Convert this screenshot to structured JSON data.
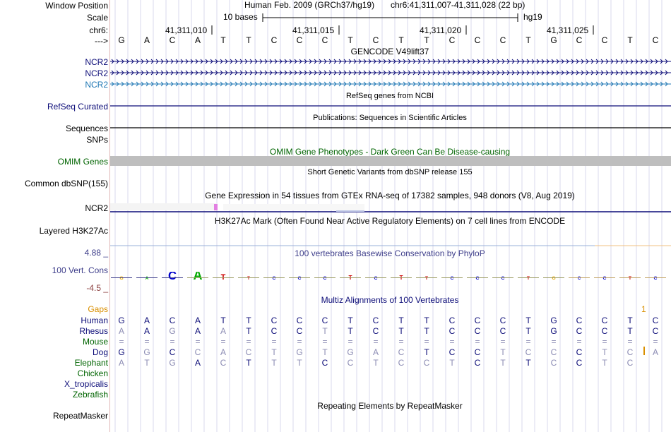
{
  "header": {
    "window_position_label": "Window Position",
    "scale_label": "Scale",
    "chrom_label": "chr6:",
    "arrow_label": "--->",
    "assembly": "Human Feb. 2009 (GRCh37/hg19)",
    "position": "chr6:41,311,007-41,311,028 (22 bp)",
    "scale_text": "10 bases",
    "scale_db": "hg19",
    "ticks": [
      "41,311,010",
      "41,311,015",
      "41,311,020",
      "41,311,025"
    ]
  },
  "sequence": [
    "G",
    "A",
    "C",
    "A",
    "T",
    "T",
    "C",
    "C",
    "C",
    "T",
    "C",
    "T",
    "T",
    "C",
    "C",
    "C",
    "T",
    "G",
    "C",
    "C",
    "T",
    "C"
  ],
  "tracks": {
    "gencode": {
      "title": "GENCODE V49lift37",
      "items": [
        "NCR2",
        "NCR2",
        "NCR2"
      ]
    },
    "refseq": {
      "title": "RefSeq genes from NCBI",
      "label": "RefSeq Curated"
    },
    "publications": {
      "title": "Publications: Sequences in Scientific Articles",
      "label1": "Sequences",
      "label2": "SNPs"
    },
    "omim": {
      "title": "OMIM Gene Phenotypes - Dark Green Can Be Disease-causing",
      "label": "OMIM Genes"
    },
    "dbsnp": {
      "title": "Short Genetic Variants from dbSNP release 155",
      "label": "Common dbSNP(155)"
    },
    "gtex": {
      "title": "Gene Expression in 54 tissues from GTEx RNA-seq of 17382 samples, 948 donors (V8, Aug 2019)",
      "label": "NCR2"
    },
    "h3k27ac": {
      "title": "H3K27Ac Mark (Often Found Near Active Regulatory Elements) on 7 cell lines from ENCODE",
      "label": "Layered H3K27Ac"
    },
    "phylop": {
      "title": "100 vertebrates Basewise Conservation by PhyloP",
      "label": "100 Vert. Cons",
      "max": "4.88 _",
      "min": "-4.5 _"
    },
    "multiz": {
      "title": "Multiz Alignments of 100 Vertebrates",
      "gaps_label": "Gaps",
      "gap_mark": "1",
      "species": [
        {
          "name": "Human",
          "bases": [
            "G",
            "A",
            "C",
            "A",
            "T",
            "T",
            "C",
            "C",
            "C",
            "T",
            "C",
            "T",
            "T",
            "C",
            "C",
            "C",
            "T",
            "G",
            "C",
            "C",
            "T",
            "C"
          ]
        },
        {
          "name": "Rhesus",
          "bases": [
            "A",
            "A",
            "G",
            "A",
            "A",
            "T",
            "C",
            "C",
            "T",
            "T",
            "C",
            "T",
            "T",
            "C",
            "C",
            "C",
            "T",
            "G",
            "C",
            "C",
            "T",
            "C"
          ]
        },
        {
          "name": "Mouse",
          "bases": [
            "=",
            "=",
            "=",
            "=",
            "=",
            "=",
            "=",
            "=",
            "=",
            "=",
            "=",
            "=",
            "=",
            "=",
            "=",
            "=",
            "=",
            "=",
            "=",
            "=",
            "=",
            "="
          ]
        },
        {
          "name": "Dog",
          "bases": [
            "G",
            "G",
            "C",
            "C",
            "A",
            "C",
            "T",
            "G",
            "T",
            "G",
            "A",
            "C",
            "T",
            "C",
            "C",
            "T",
            "C",
            "C",
            "C",
            "T",
            "C",
            "A"
          ]
        },
        {
          "name": "Elephant",
          "bases": [
            "A",
            "T",
            "G",
            "A",
            "C",
            "T",
            "T",
            "T",
            "C",
            "C",
            "T",
            "C",
            "C",
            "T",
            "C",
            "T",
            "T",
            "C",
            "C",
            "T",
            "C",
            ""
          ]
        },
        {
          "name": "Chicken",
          "bases": []
        },
        {
          "name": "X_tropicalis",
          "bases": []
        },
        {
          "name": "Zebrafish",
          "bases": []
        }
      ]
    },
    "repeatmasker": {
      "title": "Repeating Elements by RepeatMasker",
      "label": "RepeatMasker"
    }
  },
  "colors": {
    "gencode_dark": "#0c0c78",
    "gencode_light": "#1f77b4",
    "omim_bar": "#bebebe",
    "gtex_bar": "#e27fe2",
    "gaps": "#d98f00",
    "phylop_max": "#3d3d8a",
    "phylop_min": "#8a3d3d",
    "species_label": "#0c0c78",
    "omim_label": "#006400"
  }
}
